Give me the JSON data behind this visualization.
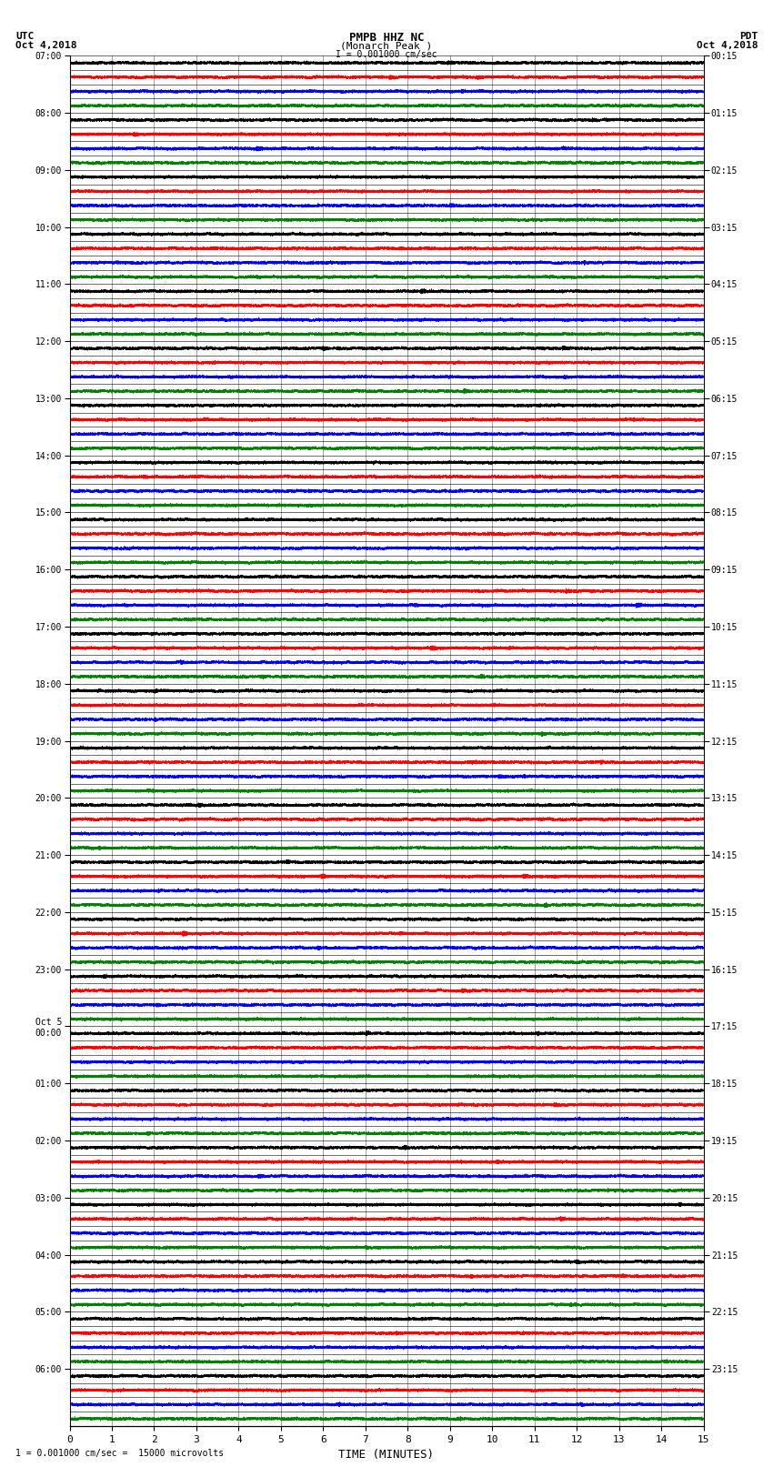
{
  "title_line1": "PMPB HHZ NC",
  "title_line2": "(Monarch Peak )",
  "scale_label": "I = 0.001000 cm/sec",
  "bottom_label": "1 = 0.001000 cm/sec =  15000 microvolts",
  "utc_label": "UTC",
  "utc_date": "Oct 4,2018",
  "pdt_label": "PDT",
  "pdt_date": "Oct 4,2018",
  "xlabel": "TIME (MINUTES)",
  "xmin": 0,
  "xmax": 15,
  "xticks": [
    0,
    1,
    2,
    3,
    4,
    5,
    6,
    7,
    8,
    9,
    10,
    11,
    12,
    13,
    14,
    15
  ],
  "num_traces": 96,
  "trace_duration_minutes": 15,
  "sample_rate": 40,
  "colors_cycle": [
    "black",
    "red",
    "blue",
    "green"
  ],
  "figwidth": 8.5,
  "figheight": 16.13,
  "bg_color": "white",
  "grid_color": "#777777",
  "trace_amplitude": 0.18,
  "noise_amplitude": 0.04,
  "left_labels": [
    "07:00",
    "",
    "",
    "",
    "08:00",
    "",
    "",
    "",
    "09:00",
    "",
    "",
    "",
    "10:00",
    "",
    "",
    "",
    "11:00",
    "",
    "",
    "",
    "12:00",
    "",
    "",
    "",
    "13:00",
    "",
    "",
    "",
    "14:00",
    "",
    "",
    "",
    "15:00",
    "",
    "",
    "",
    "16:00",
    "",
    "",
    "",
    "17:00",
    "",
    "",
    "",
    "18:00",
    "",
    "",
    "",
    "19:00",
    "",
    "",
    "",
    "20:00",
    "",
    "",
    "",
    "21:00",
    "",
    "",
    "",
    "22:00",
    "",
    "",
    "",
    "23:00",
    "",
    "",
    "",
    "Oct 5\n00:00",
    "",
    "",
    "",
    "01:00",
    "",
    "",
    "",
    "02:00",
    "",
    "",
    "",
    "03:00",
    "",
    "",
    "",
    "04:00",
    "",
    "",
    "",
    "05:00",
    "",
    "",
    "",
    "06:00",
    "",
    "",
    ""
  ],
  "right_labels": [
    "00:15",
    "",
    "",
    "",
    "01:15",
    "",
    "",
    "",
    "02:15",
    "",
    "",
    "",
    "03:15",
    "",
    "",
    "",
    "04:15",
    "",
    "",
    "",
    "05:15",
    "",
    "",
    "",
    "06:15",
    "",
    "",
    "",
    "07:15",
    "",
    "",
    "",
    "08:15",
    "",
    "",
    "",
    "09:15",
    "",
    "",
    "",
    "10:15",
    "",
    "",
    "",
    "11:15",
    "",
    "",
    "",
    "12:15",
    "",
    "",
    "",
    "13:15",
    "",
    "",
    "",
    "14:15",
    "",
    "",
    "",
    "15:15",
    "",
    "",
    "",
    "16:15",
    "",
    "",
    "",
    "17:15",
    "",
    "",
    "",
    "18:15",
    "",
    "",
    "",
    "19:15",
    "",
    "",
    "",
    "20:15",
    "",
    "",
    "",
    "21:15",
    "",
    "",
    "",
    "22:15",
    "",
    "",
    "",
    "23:15",
    "",
    "",
    ""
  ]
}
